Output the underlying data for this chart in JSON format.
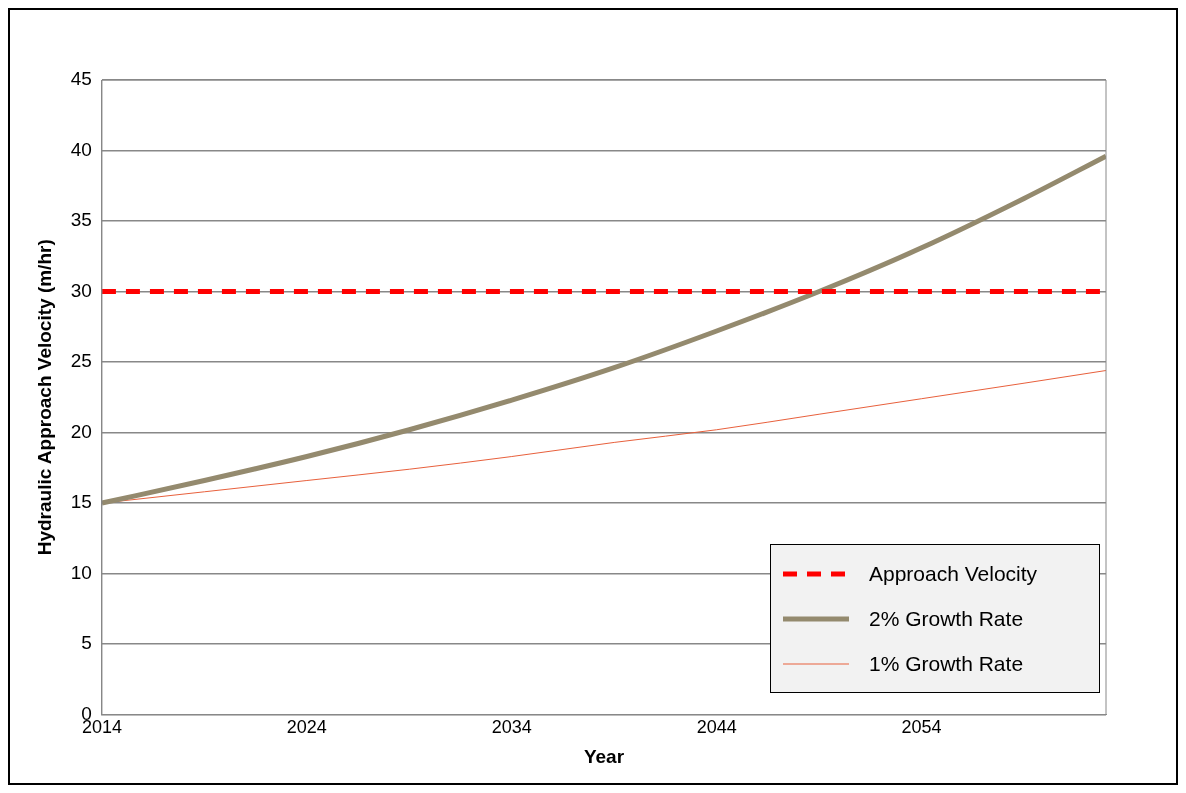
{
  "chart_data": {
    "type": "line",
    "xlabel": "Year",
    "ylabel": "Hydraulic Approach Velocity (m/hr)",
    "xlim": [
      2014,
      2063
    ],
    "xticks": [
      2014,
      2024,
      2034,
      2044,
      2054
    ],
    "ylim": [
      0,
      45
    ],
    "yticks": [
      0,
      5,
      10,
      15,
      20,
      25,
      30,
      35,
      40,
      45
    ],
    "grid": "y",
    "legend": "bottom right",
    "marker": "none",
    "series": [
      {
        "name": "Approach Velocity",
        "color": "#ff0000",
        "line_style": "dashed",
        "x": [
          2014,
          2063
        ],
        "values": [
          30,
          30
        ]
      },
      {
        "name": "2% Growth Rate",
        "color": "#948a6e",
        "line_style": "solid",
        "x": [
          2014,
          2019,
          2024,
          2029,
          2034,
          2039,
          2044,
          2049,
          2054,
          2059,
          2063
        ],
        "values": [
          15,
          16.6,
          18.3,
          20.2,
          22.3,
          24.6,
          27.2,
          30,
          33.1,
          36.6,
          39.6
        ]
      },
      {
        "name": "1% Growth Rate",
        "color": "#e8603c",
        "line_style": "solid",
        "x": [
          2014,
          2019,
          2024,
          2029,
          2034,
          2039,
          2044,
          2049,
          2054,
          2059,
          2063
        ],
        "values": [
          15,
          15.8,
          16.6,
          17.4,
          18.3,
          19.3,
          20.2,
          21.3,
          22.4,
          23.5,
          24.4
        ]
      }
    ]
  }
}
